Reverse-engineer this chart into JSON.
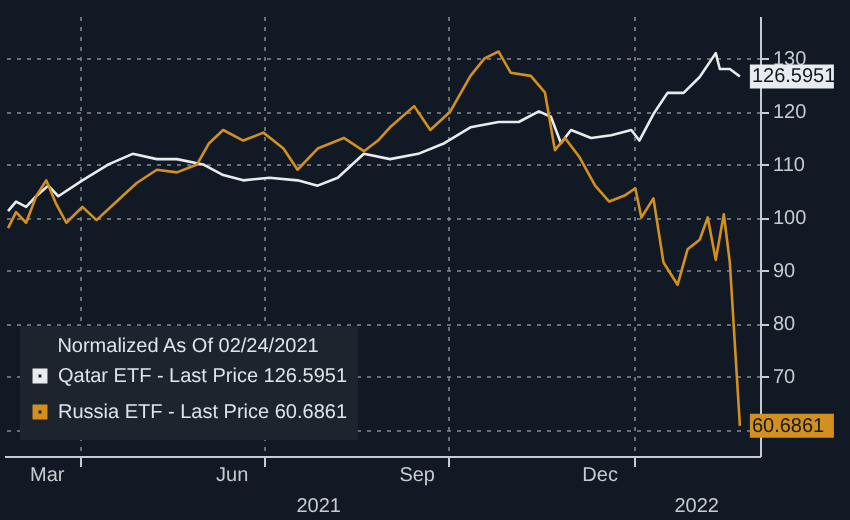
{
  "chart_data": {
    "type": "line",
    "legend_title": "Normalized As Of 02/24/2021",
    "legend": "bottom left",
    "grid": true,
    "line_style": "solid",
    "xlim": [
      "2021-02-22",
      "2022-03-05"
    ],
    "ylim": [
      55,
      138
    ],
    "xticks": [
      {
        "value": "2021-03-15",
        "label": "Mar"
      },
      {
        "value": "2021-04-01",
        "label": null
      },
      {
        "value": "2021-06-15",
        "label": "Jun"
      },
      {
        "value": "2021-07-01",
        "label": null
      },
      {
        "value": "2021-09-15",
        "label": "Sep"
      },
      {
        "value": "2021-10-01",
        "label": null
      },
      {
        "value": "2021-12-15",
        "label": "Dec"
      },
      {
        "value": "2022-01-01",
        "label": null
      }
    ],
    "yticks": [
      {
        "value": 60,
        "label": null
      },
      70,
      80,
      90,
      100,
      110,
      120,
      130
    ],
    "annotations": [
      {
        "text": "126.5951",
        "x": "2022-02-23",
        "y": 126.5951
      },
      {
        "text": "60.6861",
        "x": "2022-02-23",
        "y": 60.6861
      },
      "2021",
      "2022"
    ],
    "series": [
      {
        "name": "Qatar ETF - Last Price 126.5951",
        "color": "#e8ecef",
        "x": [
          "2021-02-24",
          "2021-02-28",
          "2021-03-05",
          "2021-03-10",
          "2021-03-16",
          "2021-03-21",
          "2021-04-02",
          "2021-04-15",
          "2021-04-27",
          "2021-05-09",
          "2021-05-19",
          "2021-06-01",
          "2021-06-11",
          "2021-06-21",
          "2021-07-04",
          "2021-07-18",
          "2021-07-28",
          "2021-08-07",
          "2021-08-20",
          "2021-09-02",
          "2021-09-16",
          "2021-09-29",
          "2021-10-12",
          "2021-10-26",
          "2021-11-05",
          "2021-11-15",
          "2021-11-21",
          "2021-11-26",
          "2021-12-01",
          "2021-12-11",
          "2021-12-21",
          "2021-12-31",
          "2022-01-04",
          "2022-01-11",
          "2022-01-18",
          "2022-01-26",
          "2022-02-03",
          "2022-02-11",
          "2022-02-13",
          "2022-02-18",
          "2022-02-23"
        ],
        "values": [
          101.2,
          103,
          102,
          104,
          106,
          104,
          107,
          110,
          112,
          111,
          111,
          110,
          108,
          107,
          107.5,
          107,
          106,
          107.5,
          112,
          111,
          112,
          114,
          117,
          118,
          118,
          120,
          119,
          114,
          116.5,
          115,
          115.5,
          116.5,
          114.5,
          119.5,
          123.5,
          123.5,
          126.5,
          131,
          128,
          128,
          126.5951
        ]
      },
      {
        "name": "Russia ETF - Last Price 60.6861",
        "color": "#d4901e",
        "x": [
          "2021-02-24",
          "2021-02-28",
          "2021-03-05",
          "2021-03-10",
          "2021-03-15",
          "2021-03-20",
          "2021-03-25",
          "2021-04-02",
          "2021-04-09",
          "2021-04-19",
          "2021-04-29",
          "2021-05-09",
          "2021-05-19",
          "2021-05-29",
          "2021-06-04",
          "2021-06-11",
          "2021-06-21",
          "2021-07-01",
          "2021-07-11",
          "2021-07-18",
          "2021-07-28",
          "2021-08-10",
          "2021-08-20",
          "2021-08-27",
          "2021-09-02",
          "2021-09-14",
          "2021-09-22",
          "2021-10-02",
          "2021-10-12",
          "2021-10-19",
          "2021-10-26",
          "2021-11-01",
          "2021-11-11",
          "2021-11-18",
          "2021-11-23",
          "2021-11-28",
          "2021-12-05",
          "2021-12-13",
          "2021-12-20",
          "2021-12-28",
          "2022-01-02",
          "2022-01-05",
          "2022-01-11",
          "2022-01-16",
          "2022-01-23",
          "2022-01-28",
          "2022-02-03",
          "2022-02-07",
          "2022-02-11",
          "2022-02-15",
          "2022-02-18",
          "2022-02-23"
        ],
        "values": [
          98,
          101,
          99,
          104,
          107,
          102.5,
          99,
          102,
          99.5,
          103,
          106.5,
          109,
          108.5,
          110,
          114,
          116.5,
          114.5,
          116,
          113,
          109,
          113,
          115,
          112.5,
          114.5,
          117,
          121,
          116.5,
          120,
          126.7,
          130,
          131.3,
          127.3,
          126.7,
          123.6,
          112.7,
          115,
          111.5,
          106,
          103,
          104.2,
          105.5,
          100,
          103.6,
          91.5,
          87.3,
          94,
          95.8,
          100,
          92,
          100.6,
          91.5,
          60.6861
        ]
      }
    ]
  }
}
